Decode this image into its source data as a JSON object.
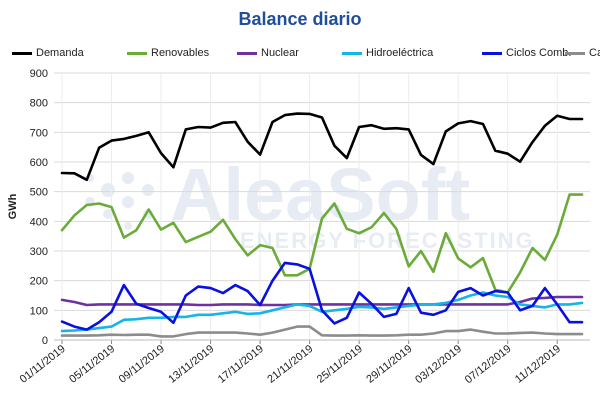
{
  "chart_data": {
    "type": "line",
    "title": "Balance diario",
    "ylabel": "GWh",
    "xlabel": "",
    "ylim": [
      0,
      900
    ],
    "yticks": [
      0,
      100,
      200,
      300,
      400,
      500,
      600,
      700,
      800,
      900
    ],
    "grid": true,
    "legend_position": "top",
    "watermark": "AleaSoft ENERGY FORECASTING",
    "x": [
      "01/11/2019",
      "02/11/2019",
      "03/11/2019",
      "04/11/2019",
      "05/11/2019",
      "06/11/2019",
      "07/11/2019",
      "08/11/2019",
      "09/11/2019",
      "10/11/2019",
      "11/11/2019",
      "12/11/2019",
      "13/11/2019",
      "14/11/2019",
      "15/11/2019",
      "16/11/2019",
      "17/11/2019",
      "18/11/2019",
      "19/11/2019",
      "20/11/2019",
      "21/11/2019",
      "22/11/2019",
      "23/11/2019",
      "24/11/2019",
      "25/11/2019",
      "26/11/2019",
      "27/11/2019",
      "28/11/2019",
      "29/11/2019",
      "30/11/2019",
      "01/12/2019",
      "02/12/2019",
      "03/12/2019",
      "04/12/2019",
      "05/12/2019",
      "06/12/2019",
      "07/12/2019",
      "08/12/2019",
      "09/12/2019",
      "10/12/2019",
      "11/12/2019",
      "12/12/2019",
      "13/12/2019"
    ],
    "xtick_labels": [
      "01/11/2019",
      "05/11/2019",
      "09/11/2019",
      "13/11/2019",
      "17/11/2019",
      "21/11/2019",
      "25/11/2019",
      "29/11/2019",
      "03/12/2019",
      "07/12/2019",
      "11/12/2019"
    ],
    "series": [
      {
        "name": "Demanda",
        "color": "#000000",
        "values": [
          563,
          562,
          540,
          648,
          672,
          678,
          688,
          700,
          630,
          582,
          710,
          718,
          716,
          732,
          735,
          668,
          625,
          735,
          758,
          763,
          762,
          750,
          655,
          613,
          718,
          724,
          712,
          714,
          710,
          624,
          593,
          703,
          730,
          738,
          728,
          638,
          628,
          601,
          667,
          722,
          756,
          745,
          745
        ]
      },
      {
        "name": "Renovables",
        "color": "#6aab3a",
        "values": [
          370,
          420,
          455,
          460,
          448,
          345,
          370,
          440,
          372,
          395,
          330,
          348,
          365,
          405,
          340,
          285,
          320,
          310,
          218,
          218,
          240,
          410,
          460,
          375,
          360,
          380,
          428,
          375,
          248,
          300,
          230,
          360,
          275,
          245,
          276,
          170,
          160,
          228,
          310,
          270,
          355,
          490,
          490
        ]
      },
      {
        "name": "Nuclear",
        "color": "#7030a0",
        "values": [
          135,
          128,
          118,
          120,
          120,
          120,
          120,
          120,
          120,
          120,
          120,
          118,
          118,
          120,
          120,
          120,
          118,
          118,
          118,
          120,
          120,
          120,
          120,
          120,
          120,
          120,
          120,
          120,
          120,
          120,
          120,
          120,
          120,
          120,
          120,
          120,
          120,
          128,
          140,
          142,
          145,
          145,
          145
        ]
      },
      {
        "name": "Hidroeléctrica",
        "color": "#17b4e8",
        "values": [
          30,
          32,
          35,
          40,
          45,
          68,
          70,
          75,
          75,
          78,
          78,
          85,
          85,
          90,
          95,
          88,
          90,
          100,
          110,
          120,
          115,
          95,
          100,
          105,
          112,
          110,
          105,
          110,
          115,
          120,
          120,
          125,
          135,
          150,
          160,
          150,
          145,
          120,
          115,
          110,
          120,
          120,
          125
        ]
      },
      {
        "name": "Ciclos Comb.",
        "color": "#0a10e0",
        "values": [
          62,
          45,
          35,
          60,
          95,
          185,
          122,
          108,
          95,
          58,
          150,
          180,
          175,
          158,
          185,
          165,
          118,
          200,
          260,
          255,
          240,
          100,
          56,
          75,
          160,
          122,
          78,
          88,
          175,
          92,
          85,
          100,
          162,
          175,
          150,
          165,
          160,
          100,
          115,
          175,
          120,
          60,
          60
        ]
      },
      {
        "name": "Carbón",
        "color": "#8c8c8c",
        "values": [
          15,
          15,
          15,
          16,
          18,
          17,
          18,
          18,
          12,
          12,
          20,
          25,
          25,
          25,
          25,
          22,
          18,
          25,
          35,
          45,
          45,
          16,
          15,
          15,
          16,
          15,
          15,
          16,
          18,
          18,
          22,
          30,
          30,
          35,
          28,
          22,
          22,
          24,
          25,
          22,
          20,
          20,
          20
        ]
      }
    ]
  }
}
